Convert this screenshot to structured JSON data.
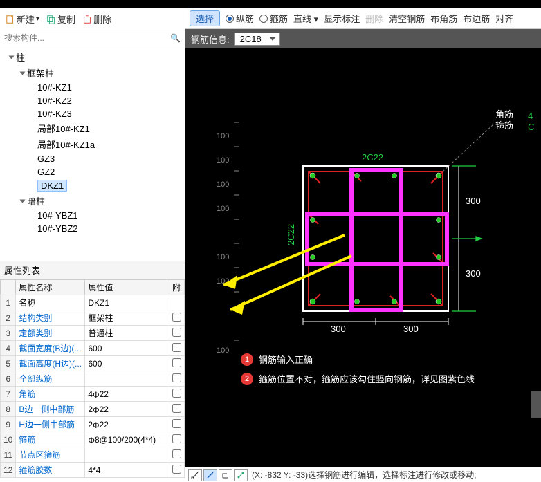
{
  "left_toolbar": {
    "new": "新建",
    "copy": "复制",
    "delete": "删除"
  },
  "search_placeholder": "搜索构件...",
  "tree": {
    "root": "柱",
    "group1": "框架柱",
    "items1": [
      "10#-KZ1",
      "10#-KZ2",
      "10#-KZ3",
      "局部10#-KZ1",
      "局部10#-KZ1a",
      "GZ3",
      "GZ2",
      "DKZ1"
    ],
    "selected": "DKZ1",
    "group2": "暗柱",
    "items2": [
      "10#-YBZ1",
      "10#-YBZ2"
    ]
  },
  "prop_header": "属性列表",
  "prop_cols": {
    "c1": "属性名称",
    "c2": "属性值",
    "c3": "附"
  },
  "props": [
    {
      "n": "1",
      "name": "名称",
      "val": "DKZ1",
      "cls": ""
    },
    {
      "n": "2",
      "name": "结构类别",
      "val": "框架柱",
      "cls": "blue"
    },
    {
      "n": "3",
      "name": "定额类别",
      "val": "普通柱",
      "cls": "blue"
    },
    {
      "n": "4",
      "name": "截面宽度(B边)(...",
      "val": "600",
      "cls": "blue"
    },
    {
      "n": "5",
      "name": "截面高度(H边)(...",
      "val": "600",
      "cls": "blue"
    },
    {
      "n": "6",
      "name": "全部纵筋",
      "val": "",
      "cls": "blue"
    },
    {
      "n": "7",
      "name": "角筋",
      "val": "4⌀22",
      "cls": "blue",
      "dia": 1
    },
    {
      "n": "8",
      "name": "B边一侧中部筋",
      "val": "2⌀22",
      "cls": "blue",
      "dia": 1
    },
    {
      "n": "9",
      "name": "H边一侧中部筋",
      "val": "2⌀22",
      "cls": "blue",
      "dia": 1
    },
    {
      "n": "10",
      "name": "箍筋",
      "val": "⌀8@100/200(4*4)",
      "cls": "blue",
      "dia": 1
    },
    {
      "n": "11",
      "name": "节点区箍筋",
      "val": "",
      "cls": "blue"
    },
    {
      "n": "12",
      "name": "箍筋胶数",
      "val": "4*4",
      "cls": "blue"
    }
  ],
  "r_toolbar": {
    "select": "选择",
    "opt1": "纵筋",
    "opt2": "箍筋",
    "straight": "直线",
    "show_label": "显示标注",
    "delete": "删除",
    "clear": "清空钢筋",
    "corner": "布角筋",
    "edge": "布边筋",
    "align": "对齐"
  },
  "rebar_info_label": "钢筋信息:",
  "rebar_info_value": "2C18",
  "diagram": {
    "top_label": "2C22",
    "left_label": "2C22",
    "d_right_1": "300",
    "d_right_2": "300",
    "d_bottom_1": "300",
    "d_bottom_2": "300",
    "axis_ticks": [
      "100",
      "100",
      "100",
      "100",
      "100",
      "100",
      "100"
    ],
    "legend1": "角筋",
    "legend2": "箍筋",
    "colors": {
      "outline": "#ffffff",
      "stirrup": "#dd2222",
      "highlight": "#ff33ff",
      "text_green": "#22cc44",
      "arrow": "#ffee00"
    }
  },
  "annotations": {
    "a1": "钢筋输入正确",
    "a2": "箍筋位置不对，箍筋应该勾住竖向钢筋，详见图紫色线"
  },
  "status_text": "(X: -832 Y: -33)选择钢筋进行编辑，选择标注进行修改或移动;"
}
